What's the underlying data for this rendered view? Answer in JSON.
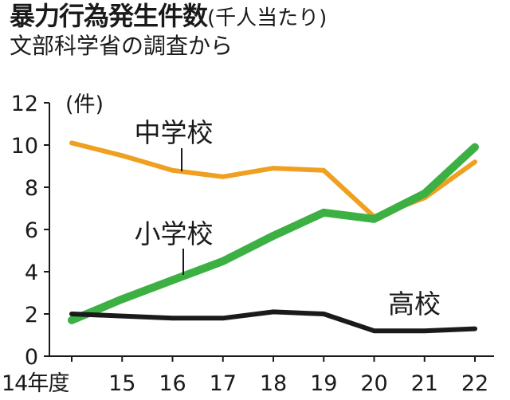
{
  "header": {
    "title": "暴力行為発生件数",
    "unit": "(千人当たり)",
    "subtitle": "文部科学省の調査から"
  },
  "chart_data": {
    "type": "line",
    "title": "暴力行為発生件数",
    "subtitle": "文部科学省の調査から",
    "ylabel": "(件)",
    "xlabel": "",
    "categories": [
      "14年度",
      "15",
      "16",
      "17",
      "18",
      "19",
      "20",
      "21",
      "22"
    ],
    "ylim": [
      0,
      12
    ],
    "yticks": [
      0,
      2,
      4,
      6,
      8,
      10,
      12
    ],
    "grid": false,
    "legend": "inline labels",
    "series": [
      {
        "name": "中学校",
        "color": "#f0a020",
        "values": [
          10.1,
          9.5,
          8.8,
          8.5,
          8.9,
          8.8,
          6.6,
          7.5,
          9.2
        ]
      },
      {
        "name": "小学校",
        "color": "#3cb043",
        "values": [
          1.7,
          2.7,
          3.6,
          4.5,
          5.7,
          6.8,
          6.5,
          7.7,
          9.9
        ]
      },
      {
        "name": "高校",
        "color": "#1a1a1a",
        "values": [
          2.0,
          1.9,
          1.8,
          1.8,
          2.1,
          2.0,
          1.2,
          1.2,
          1.3
        ]
      }
    ]
  }
}
